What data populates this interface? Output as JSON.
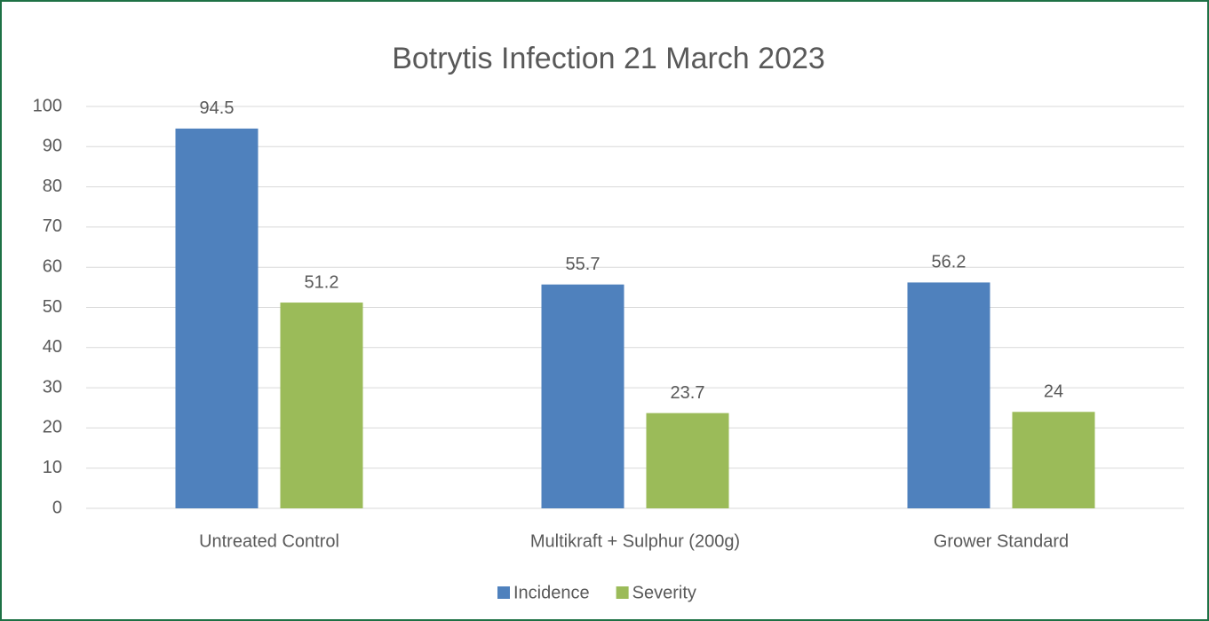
{
  "chart_data": {
    "type": "bar",
    "title": "Botrytis Infection 21 March 2023",
    "categories": [
      "Untreated Control",
      "Multikraft + Sulphur (200g)",
      "Grower Standard"
    ],
    "series": [
      {
        "name": "Incidence",
        "color": "#4f81bd",
        "values": [
          94.5,
          55.7,
          56.2
        ]
      },
      {
        "name": "Severity",
        "color": "#9bbb59",
        "values": [
          51.2,
          23.7,
          24
        ]
      }
    ],
    "ylim": [
      0,
      100
    ],
    "yticks": [
      0,
      10,
      20,
      30,
      40,
      50,
      60,
      70,
      80,
      90,
      100
    ],
    "grid": true,
    "legend": "bottom"
  }
}
